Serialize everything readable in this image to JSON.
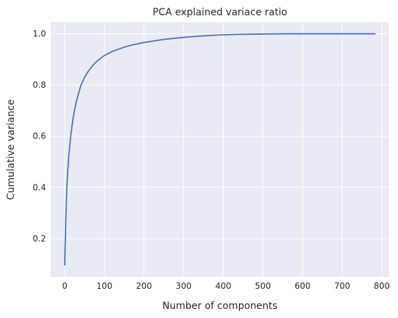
{
  "chart_data": {
    "type": "line",
    "title": "PCA explained variace ratio",
    "xlabel": "Number of components",
    "ylabel": "Cumulative variance",
    "xlim": [
      -35,
      818
    ],
    "ylim": [
      0.05,
      1.045
    ],
    "xticks": [
      0,
      100,
      200,
      300,
      400,
      500,
      600,
      700,
      800
    ],
    "yticks": [
      0.2,
      0.4,
      0.6,
      0.8,
      1.0
    ],
    "xtick_labels": [
      "0",
      "100",
      "200",
      "300",
      "400",
      "500",
      "600",
      "700",
      "800"
    ],
    "ytick_labels": [
      "0.2",
      "0.4",
      "0.6",
      "0.8",
      "1.0"
    ],
    "grid": true,
    "background": "#eaeaf2",
    "grid_color": "#ffffff",
    "series": [
      {
        "color": "#4c72b0",
        "x": [
          0,
          1,
          2,
          3,
          5,
          7,
          10,
          15,
          20,
          25,
          30,
          40,
          50,
          60,
          70,
          80,
          90,
          100,
          120,
          150,
          175,
          200,
          250,
          300,
          350,
          400,
          450,
          500,
          550,
          600,
          650,
          700,
          750,
          783
        ],
        "y": [
          0.097,
          0.17,
          0.23,
          0.29,
          0.39,
          0.45,
          0.52,
          0.6,
          0.66,
          0.705,
          0.74,
          0.795,
          0.83,
          0.855,
          0.875,
          0.891,
          0.904,
          0.915,
          0.931,
          0.948,
          0.958,
          0.966,
          0.978,
          0.986,
          0.992,
          0.996,
          0.998,
          0.999,
          1.0,
          1.0,
          1.0,
          1.0,
          1.0,
          1.0
        ]
      }
    ]
  }
}
